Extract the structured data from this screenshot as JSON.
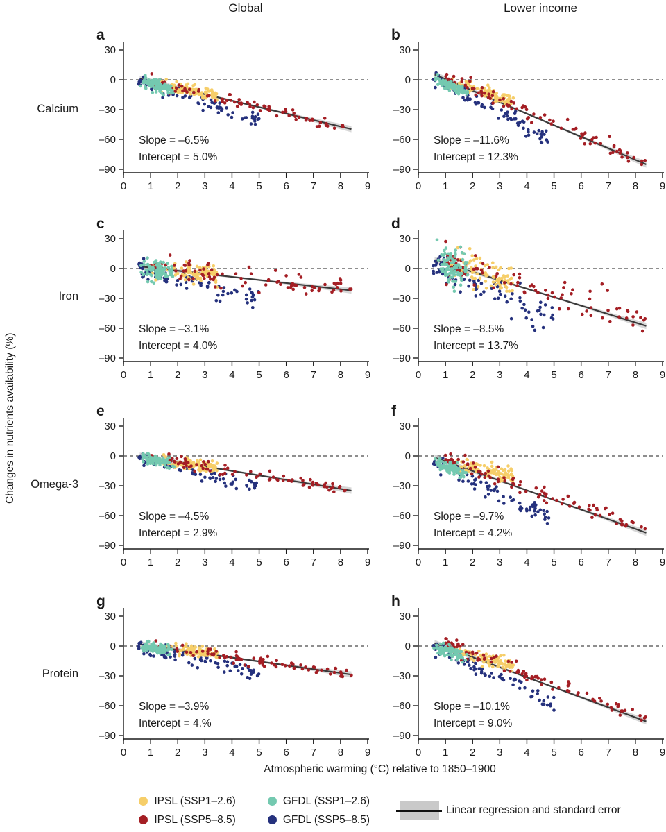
{
  "figure": {
    "columns": [
      "Global",
      "Lower income"
    ],
    "rows": [
      "Calcium",
      "Iron",
      "Omega-3",
      "Protein"
    ],
    "y_axis_label": "Changes in nutrients availability (%)",
    "x_axis_label": "Atmospheric warming (°C) relative to 1850–1900"
  },
  "legend": {
    "items": [
      {
        "key": "ipsl-ssp1",
        "label": "IPSL (SSP1–2.6)",
        "color": "#F6CE69"
      },
      {
        "key": "ipsl-ssp5",
        "label": "IPSL (SSP5–8.5)",
        "color": "#A41E24"
      },
      {
        "key": "gfdl-ssp1",
        "label": "GFDL (SSP1–2.6)",
        "color": "#74C9B0"
      },
      {
        "key": "gfdl-ssp5",
        "label": "GFDL (SSP5–8.5)",
        "color": "#25317D"
      }
    ],
    "regression_label": "Linear regression and standard error"
  },
  "colors": {
    "ipsl1": "#F6CE69",
    "ipsl5": "#A41E24",
    "gfdl1": "#74C9B0",
    "gfdl5": "#25317D",
    "regression": "#3a3a3a",
    "band": "#c9c9c9",
    "dashed": "#4a4a4a",
    "axis": "#1a1a1a"
  },
  "chart_common": {
    "xlim": [
      0,
      9
    ],
    "ylim": [
      -90,
      30
    ],
    "x_ticks": [
      "0",
      "1",
      "2",
      "3",
      "4",
      "5",
      "6",
      "7",
      "8",
      "9"
    ],
    "x_tick_values": [
      0,
      1,
      2,
      3,
      4,
      5,
      6,
      7,
      8,
      9
    ],
    "y_ticks": [
      "30",
      "0",
      "–30",
      "–60",
      "–90"
    ],
    "y_tick_values": [
      30,
      0,
      -30,
      -60,
      -90
    ],
    "zero_line": 0,
    "regression_x_range": [
      0.6,
      8.4
    ],
    "grid": false,
    "legend_position": "bottom"
  },
  "chart_data": [
    {
      "type": "scatter",
      "letter": "a",
      "nutrient": "Calcium",
      "region": "Global",
      "slope_pct": -6.5,
      "intercept_pct": 5.0,
      "slope_label": "Slope = –6.5%",
      "intercept_label": "Intercept = 5.0%",
      "seed": 11,
      "series": [
        {
          "key": "gfdl5",
          "name": "GFDL (SSP5–8.5)",
          "n": 80,
          "x_range": [
            0.55,
            5.0
          ],
          "x_dist": 1.25,
          "slope_factor": 1.35,
          "offset": -1,
          "noise_sd": 3.5
        },
        {
          "key": "ipsl1",
          "name": "IPSL (SSP1–2.6)",
          "n": 95,
          "x_range": [
            1.0,
            3.45
          ],
          "x_dist": 0.6,
          "slope_factor": 0.85,
          "offset": -2,
          "noise_sd": 3
        },
        {
          "key": "ipsl5",
          "name": "IPSL (SSP5–8.5)",
          "n": 90,
          "x_range": [
            1.0,
            8.4
          ],
          "x_dist": 1.35,
          "slope_factor": 1.0,
          "offset": 0,
          "noise_sd": 3
        },
        {
          "key": "gfdl1",
          "name": "GFDL (SSP1–2.6)",
          "n": 95,
          "x_range": [
            0.55,
            1.95
          ],
          "x_dist": 0,
          "slope_factor": 1.0,
          "offset": -3,
          "noise_sd": 3
        }
      ]
    },
    {
      "type": "scatter",
      "letter": "b",
      "nutrient": "Calcium",
      "region": "Lower income",
      "slope_pct": -11.6,
      "intercept_pct": 12.3,
      "slope_label": "Slope = –11.6%",
      "intercept_label": "Intercept = 12.3%",
      "seed": 22,
      "series": [
        {
          "key": "gfdl5",
          "name": "GFDL (SSP5–8.5)",
          "n": 80,
          "x_range": [
            0.55,
            4.8
          ],
          "x_dist": 1.25,
          "slope_factor": 1.25,
          "offset": -2,
          "noise_sd": 4
        },
        {
          "key": "ipsl1",
          "name": "IPSL (SSP1–2.6)",
          "n": 95,
          "x_range": [
            1.0,
            3.5
          ],
          "x_dist": 0.6,
          "slope_factor": 0.75,
          "offset": -4,
          "noise_sd": 3.5
        },
        {
          "key": "ipsl5",
          "name": "IPSL (SSP5–8.5)",
          "n": 90,
          "x_range": [
            1.0,
            8.4
          ],
          "x_dist": 1.35,
          "slope_factor": 1.0,
          "offset": 2,
          "noise_sd": 4
        },
        {
          "key": "gfdl1",
          "name": "GFDL (SSP1–2.6)",
          "n": 95,
          "x_range": [
            0.55,
            1.9
          ],
          "x_dist": 0,
          "slope_factor": 0.9,
          "offset": -6,
          "noise_sd": 2.5
        }
      ]
    },
    {
      "type": "scatter",
      "letter": "c",
      "nutrient": "Iron",
      "region": "Global",
      "slope_pct": -3.1,
      "intercept_pct": 4.0,
      "slope_label": "Slope = –3.1%",
      "intercept_label": "Intercept = 4.0%",
      "seed": 33,
      "series": [
        {
          "key": "gfdl5",
          "name": "GFDL (SSP5–8.5)",
          "n": 80,
          "x_range": [
            0.55,
            5.0
          ],
          "x_dist": 1.25,
          "slope_factor": 2.2,
          "offset": 0,
          "noise_sd": 5
        },
        {
          "key": "ipsl1",
          "name": "IPSL (SSP1–2.6)",
          "n": 95,
          "x_range": [
            1.0,
            3.45
          ],
          "x_dist": 0.6,
          "slope_factor": 0.8,
          "offset": -1,
          "noise_sd": 5
        },
        {
          "key": "ipsl5",
          "name": "IPSL (SSP5–8.5)",
          "n": 90,
          "x_range": [
            1.0,
            8.4
          ],
          "x_dist": 1.35,
          "slope_factor": 1.0,
          "offset": 0,
          "noise_sd": 6
        },
        {
          "key": "gfdl1",
          "name": "GFDL (SSP1–2.6)",
          "n": 95,
          "x_range": [
            0.55,
            1.9
          ],
          "x_dist": 0,
          "slope_factor": 1.0,
          "offset": -2,
          "noise_sd": 5
        }
      ]
    },
    {
      "type": "scatter",
      "letter": "d",
      "nutrient": "Iron",
      "region": "Lower income",
      "slope_pct": -8.5,
      "intercept_pct": 13.7,
      "slope_label": "Slope = –8.5%",
      "intercept_label": "Intercept = 13.7%",
      "seed": 44,
      "series": [
        {
          "key": "gfdl5",
          "name": "GFDL (SSP5–8.5)",
          "n": 80,
          "x_range": [
            0.55,
            5.0
          ],
          "x_dist": 1.25,
          "slope_factor": 1.45,
          "offset": -2,
          "noise_sd": 8
        },
        {
          "key": "ipsl1",
          "name": "IPSL (SSP1–2.6)",
          "n": 95,
          "x_range": [
            1.0,
            3.5
          ],
          "x_dist": 0.6,
          "slope_factor": 0.9,
          "offset": 0,
          "noise_sd": 8
        },
        {
          "key": "ipsl5",
          "name": "IPSL (SSP5–8.5)",
          "n": 90,
          "x_range": [
            1.0,
            8.4
          ],
          "x_dist": 1.35,
          "slope_factor": 0.95,
          "offset": 2,
          "noise_sd": 9
        },
        {
          "key": "gfdl1",
          "name": "GFDL (SSP1–2.6)",
          "n": 95,
          "x_range": [
            0.55,
            1.9
          ],
          "x_dist": 0,
          "slope_factor": 1.0,
          "offset": 0,
          "noise_sd": 10
        }
      ]
    },
    {
      "type": "scatter",
      "letter": "e",
      "nutrient": "Omega-3",
      "region": "Global",
      "slope_pct": -4.5,
      "intercept_pct": 2.9,
      "slope_label": "Slope = –4.5%",
      "intercept_label": "Intercept = 2.9%",
      "seed": 55,
      "series": [
        {
          "key": "gfdl5",
          "name": "GFDL (SSP5–8.5)",
          "n": 80,
          "x_range": [
            0.55,
            5.0
          ],
          "x_dist": 1.25,
          "slope_factor": 1.5,
          "offset": -1,
          "noise_sd": 3
        },
        {
          "key": "ipsl1",
          "name": "IPSL (SSP1–2.6)",
          "n": 95,
          "x_range": [
            1.0,
            3.45
          ],
          "x_dist": 0.6,
          "slope_factor": 0.85,
          "offset": -2,
          "noise_sd": 2.5
        },
        {
          "key": "ipsl5",
          "name": "IPSL (SSP5–8.5)",
          "n": 90,
          "x_range": [
            1.0,
            8.4
          ],
          "x_dist": 1.35,
          "slope_factor": 1.0,
          "offset": 0,
          "noise_sd": 2.5
        },
        {
          "key": "gfdl1",
          "name": "GFDL (SSP1–2.6)",
          "n": 95,
          "x_range": [
            0.55,
            1.9
          ],
          "x_dist": 0,
          "slope_factor": 1.0,
          "offset": -2,
          "noise_sd": 2.5
        }
      ]
    },
    {
      "type": "scatter",
      "letter": "f",
      "nutrient": "Omega-3",
      "region": "Lower income",
      "slope_pct": -9.7,
      "intercept_pct": 4.2,
      "slope_label": "Slope = –9.7%",
      "intercept_label": "Intercept = 4.2%",
      "seed": 66,
      "series": [
        {
          "key": "gfdl5",
          "name": "GFDL (SSP5–8.5)",
          "n": 80,
          "x_range": [
            0.55,
            5.0
          ],
          "x_dist": 1.25,
          "slope_factor": 1.35,
          "offset": -3,
          "noise_sd": 4
        },
        {
          "key": "ipsl1",
          "name": "IPSL (SSP1–2.6)",
          "n": 95,
          "x_range": [
            1.0,
            3.5
          ],
          "x_dist": 0.6,
          "slope_factor": 0.6,
          "offset": -5,
          "noise_sd": 4
        },
        {
          "key": "ipsl5",
          "name": "IPSL (SSP5–8.5)",
          "n": 90,
          "x_range": [
            1.0,
            8.4
          ],
          "x_dist": 1.35,
          "slope_factor": 1.0,
          "offset": 3,
          "noise_sd": 4
        },
        {
          "key": "gfdl1",
          "name": "GFDL (SSP1–2.6)",
          "n": 95,
          "x_range": [
            0.55,
            1.9
          ],
          "x_dist": 0,
          "slope_factor": 1.0,
          "offset": -5,
          "noise_sd": 3
        }
      ]
    },
    {
      "type": "scatter",
      "letter": "g",
      "nutrient": "Protein",
      "region": "Global",
      "slope_pct": -3.9,
      "intercept_pct": 4.0,
      "slope_label": "Slope = –3.9%",
      "intercept_label": "Intercept = 4.%",
      "seed": 77,
      "series": [
        {
          "key": "gfdl5",
          "name": "GFDL (SSP5–8.5)",
          "n": 80,
          "x_range": [
            0.55,
            5.0
          ],
          "x_dist": 1.25,
          "slope_factor": 1.6,
          "offset": -1,
          "noise_sd": 3
        },
        {
          "key": "ipsl1",
          "name": "IPSL (SSP1–2.6)",
          "n": 95,
          "x_range": [
            1.0,
            3.45
          ],
          "x_dist": 0.6,
          "slope_factor": 0.8,
          "offset": -1,
          "noise_sd": 2.5
        },
        {
          "key": "ipsl5",
          "name": "IPSL (SSP5–8.5)",
          "n": 90,
          "x_range": [
            1.0,
            8.4
          ],
          "x_dist": 1.35,
          "slope_factor": 1.0,
          "offset": 0,
          "noise_sd": 2.5
        },
        {
          "key": "gfdl1",
          "name": "GFDL (SSP1–2.6)",
          "n": 95,
          "x_range": [
            0.55,
            1.9
          ],
          "x_dist": 0,
          "slope_factor": 1.0,
          "offset": -2,
          "noise_sd": 2.5
        }
      ]
    },
    {
      "type": "scatter",
      "letter": "h",
      "nutrient": "Protein",
      "region": "Lower income",
      "slope_pct": -10.1,
      "intercept_pct": 9.0,
      "slope_label": "Slope = –10.1%",
      "intercept_label": "Intercept = 9.0%",
      "seed": 88,
      "series": [
        {
          "key": "gfdl5",
          "name": "GFDL (SSP5–8.5)",
          "n": 80,
          "x_range": [
            0.55,
            5.0
          ],
          "x_dist": 1.25,
          "slope_factor": 1.3,
          "offset": -2,
          "noise_sd": 4
        },
        {
          "key": "ipsl1",
          "name": "IPSL (SSP1–2.6)",
          "n": 95,
          "x_range": [
            1.0,
            3.5
          ],
          "x_dist": 0.6,
          "slope_factor": 0.7,
          "offset": -4,
          "noise_sd": 3.5
        },
        {
          "key": "ipsl5",
          "name": "IPSL (SSP5–8.5)",
          "n": 90,
          "x_range": [
            1.0,
            8.4
          ],
          "x_dist": 1.35,
          "slope_factor": 1.0,
          "offset": 3,
          "noise_sd": 4
        },
        {
          "key": "gfdl1",
          "name": "GFDL (SSP1–2.6)",
          "n": 95,
          "x_range": [
            0.55,
            1.9
          ],
          "x_dist": 0,
          "slope_factor": 0.9,
          "offset": -4,
          "noise_sd": 3
        }
      ]
    }
  ]
}
